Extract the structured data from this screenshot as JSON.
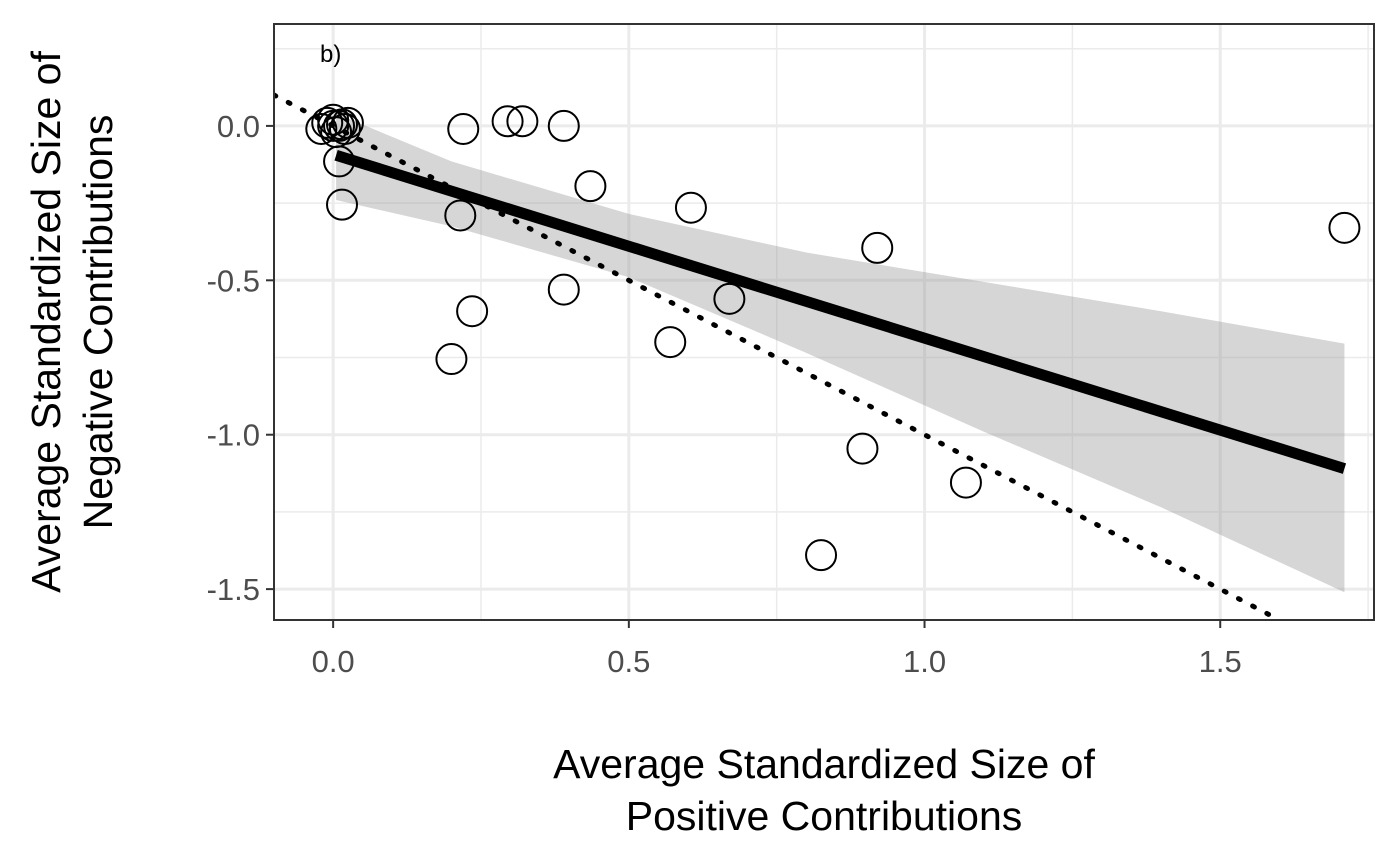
{
  "chart_data": {
    "type": "scatter",
    "annotation": "b)",
    "xlabel": [
      "Average Standardized Size of",
      "Positive Contributions"
    ],
    "ylabel": [
      "Average Standardized Size of",
      "Negative Contributions"
    ],
    "xlim": [
      -0.1,
      1.76
    ],
    "ylim": [
      -1.6,
      0.33
    ],
    "x_ticks": [
      0.0,
      0.5,
      1.0,
      1.5
    ],
    "x_tick_labels": [
      "0.0",
      "0.5",
      "1.0",
      "1.5"
    ],
    "y_ticks": [
      0.0,
      -0.5,
      -1.0,
      -1.5
    ],
    "y_tick_labels": [
      "0.0",
      "-0.5",
      "-1.0",
      "-1.5"
    ],
    "grid": true,
    "points": [
      {
        "x": -0.02,
        "y": -0.01
      },
      {
        "x": -0.01,
        "y": 0.01
      },
      {
        "x": 0.0,
        "y": 0.0
      },
      {
        "x": 0.0,
        "y": 0.02
      },
      {
        "x": 0.005,
        "y": -0.02
      },
      {
        "x": 0.01,
        "y": 0.0
      },
      {
        "x": 0.015,
        "y": 0.005
      },
      {
        "x": 0.02,
        "y": -0.01
      },
      {
        "x": 0.025,
        "y": 0.01
      },
      {
        "x": 0.01,
        "y": -0.115
      },
      {
        "x": 0.015,
        "y": -0.255
      },
      {
        "x": 0.22,
        "y": -0.01
      },
      {
        "x": 0.295,
        "y": 0.015
      },
      {
        "x": 0.32,
        "y": 0.015
      },
      {
        "x": 0.39,
        "y": 0.0
      },
      {
        "x": 0.435,
        "y": -0.195
      },
      {
        "x": 0.215,
        "y": -0.29
      },
      {
        "x": 0.235,
        "y": -0.6
      },
      {
        "x": 0.2,
        "y": -0.755
      },
      {
        "x": 0.39,
        "y": -0.53
      },
      {
        "x": 0.57,
        "y": -0.7
      },
      {
        "x": 0.605,
        "y": -0.265
      },
      {
        "x": 0.67,
        "y": -0.56
      },
      {
        "x": 0.92,
        "y": -0.395
      },
      {
        "x": 0.895,
        "y": -1.045
      },
      {
        "x": 1.07,
        "y": -1.155
      },
      {
        "x": 0.825,
        "y": -1.39
      },
      {
        "x": 1.71,
        "y": -0.33
      }
    ],
    "fit_line": {
      "x": [
        0.005,
        1.71
      ],
      "y": [
        -0.095,
        -1.11
      ]
    },
    "confidence_band": {
      "x": [
        0.005,
        0.2,
        0.5,
        0.8,
        1.1,
        1.4,
        1.71
      ],
      "lower": [
        -0.24,
        -0.325,
        -0.49,
        -0.735,
        -0.99,
        -1.235,
        -1.51
      ],
      "upper": [
        0.04,
        -0.115,
        -0.285,
        -0.41,
        -0.505,
        -0.6,
        -0.705
      ]
    },
    "reference_line": {
      "x": [
        -0.1,
        1.6
      ],
      "y": [
        0.1,
        -1.6
      ],
      "style": "dotted"
    }
  }
}
